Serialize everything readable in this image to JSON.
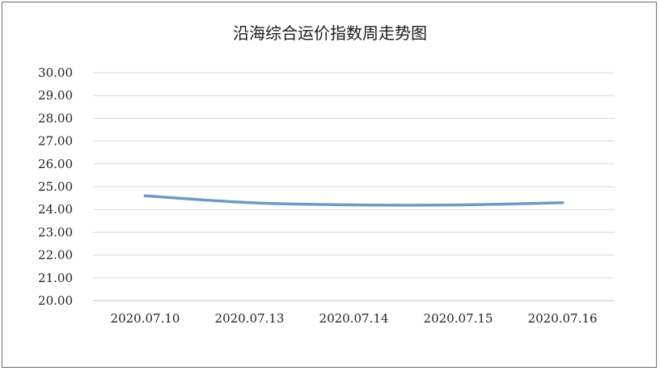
{
  "chart_data": {
    "type": "line",
    "title": "沿海综合运价指数周走势图",
    "categories": [
      "2020.07.10",
      "2020.07.13",
      "2020.07.14",
      "2020.07.15",
      "2020.07.16"
    ],
    "values": [
      24.6,
      24.3,
      24.2,
      24.2,
      24.3
    ],
    "ylim": [
      20,
      30
    ],
    "yticks": [
      "20.00",
      "21.00",
      "22.00",
      "23.00",
      "24.00",
      "25.00",
      "26.00",
      "27.00",
      "28.00",
      "29.00",
      "30.00"
    ],
    "grid": true,
    "line_color": "#6d9ac6",
    "grid_color": "#d9d9d9"
  }
}
